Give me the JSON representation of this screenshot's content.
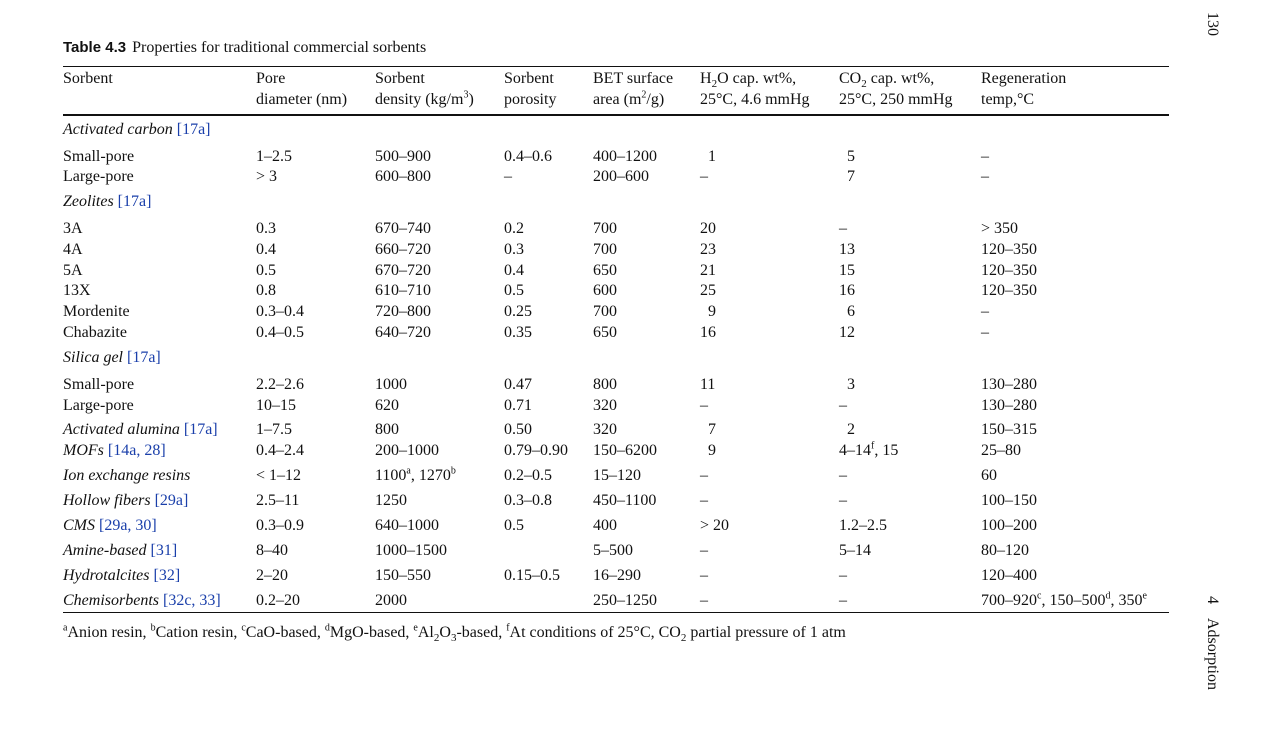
{
  "side": {
    "page_number": "130",
    "chapter_number": "4",
    "chapter_title": "Adsorption"
  },
  "caption": {
    "number": "Table 4.3",
    "title": "Properties for traditional commercial sorbents"
  },
  "headers": {
    "sorbent": "Sorbent",
    "pore_1": "Pore",
    "pore_2": "diameter (nm)",
    "density_1": "Sorbent",
    "density_2a": "density (kg/m",
    "density_sup": "3",
    "density_2b": ")",
    "porosity_1": "Sorbent",
    "porosity_2": "porosity",
    "bet_1": "BET surface",
    "bet_2a": "area (m",
    "bet_sup": "2",
    "bet_2b": "/g)",
    "h2o_1a": "H",
    "h2o_sub": "2",
    "h2o_1b": "O cap. wt%,",
    "h2o_2": "25°C, 4.6 mmHg",
    "co2_1a": "CO",
    "co2_sub": "2",
    "co2_1b": " cap. wt%,",
    "co2_2": "25°C, 250 mmHg",
    "regen_1": "Regeneration",
    "regen_2": "temp,°C"
  },
  "groups": {
    "activated_carbon": {
      "name": "Activated carbon",
      "ref": "[17a]"
    },
    "zeolites": {
      "name": "Zeolites",
      "ref": "[17a]"
    },
    "silica_gel": {
      "name": "Silica gel",
      "ref": "[17a]"
    }
  },
  "rows": {
    "ac_small": {
      "sorbent": "Small-pore",
      "pore": "1–2.5",
      "density": "500–900",
      "porosity": "0.4–0.6",
      "bet": "400–1200",
      "h2o": "1",
      "co2": "5",
      "regen": "–"
    },
    "ac_large": {
      "sorbent": "Large-pore",
      "pore": "> 3",
      "density": "600–800",
      "porosity": "–",
      "bet": "200–600",
      "h2o": "–",
      "co2": "7",
      "regen": "–"
    },
    "z3a": {
      "sorbent": "3A",
      "pore": "0.3",
      "density": "670–740",
      "porosity": "0.2",
      "bet": "700",
      "h2o": "20",
      "co2": "–",
      "regen": "> 350"
    },
    "z4a": {
      "sorbent": "4A",
      "pore": "0.4",
      "density": "660–720",
      "porosity": "0.3",
      "bet": "700",
      "h2o": "23",
      "co2": "13",
      "regen": "120–350"
    },
    "z5a": {
      "sorbent": "5A",
      "pore": "0.5",
      "density": "670–720",
      "porosity": "0.4",
      "bet": "650",
      "h2o": "21",
      "co2": "15",
      "regen": "120–350"
    },
    "z13x": {
      "sorbent": "13X",
      "pore": "0.8",
      "density": "610–710",
      "porosity": "0.5",
      "bet": "600",
      "h2o": "25",
      "co2": "16",
      "regen": "120–350"
    },
    "mordenite": {
      "sorbent": "Mordenite",
      "pore": "0.3–0.4",
      "density": "720–800",
      "porosity": "0.25",
      "bet": "700",
      "h2o": "9",
      "co2": "6",
      "regen": "–"
    },
    "chabazite": {
      "sorbent": "Chabazite",
      "pore": "0.4–0.5",
      "density": "640–720",
      "porosity": "0.35",
      "bet": "650",
      "h2o": "16",
      "co2": "12",
      "regen": "–"
    },
    "sg_small": {
      "sorbent": "Small-pore",
      "pore": "2.2–2.6",
      "density": "1000",
      "porosity": "0.47",
      "bet": "800",
      "h2o": "11",
      "co2": "3",
      "regen": "130–280"
    },
    "sg_large": {
      "sorbent": "Large-pore",
      "pore": "10–15",
      "density": "620",
      "porosity": "0.71",
      "bet": "320",
      "h2o": "–",
      "co2": "–",
      "regen": "130–280"
    },
    "alumina": {
      "sorbent": "Activated alumina",
      "ref": "[17a]",
      "pore": "1–7.5",
      "density": "800",
      "porosity": "0.50",
      "bet": "320",
      "h2o": "7",
      "co2": "2",
      "regen": "150–315"
    },
    "mofs": {
      "sorbent": "MOFs",
      "ref": "[14a, 28]",
      "pore": "0.4–2.4",
      "density": "200–1000",
      "porosity": "0.79–0.90",
      "bet": "150–6200",
      "h2o": "9",
      "co2_a": "4–14",
      "co2_sup": "f",
      "co2_b": ", 15",
      "regen": "25–80"
    },
    "ion": {
      "sorbent": "Ion exchange resins",
      "pore": "< 1–12",
      "density_a": "1100",
      "density_sup1": "a",
      "density_b": ", 1270",
      "density_sup2": "b",
      "porosity": "0.2–0.5",
      "bet": "15–120",
      "h2o": "–",
      "co2": "–",
      "regen": "60"
    },
    "hollow": {
      "sorbent": "Hollow fibers",
      "ref": "[29a]",
      "pore": "2.5–11",
      "density": "1250",
      "porosity": "0.3–0.8",
      "bet": "450–1100",
      "h2o": "–",
      "co2": "–",
      "regen": "100–150"
    },
    "cms": {
      "sorbent": "CMS",
      "ref": "[29a, 30]",
      "pore": "0.3–0.9",
      "density": "640–1000",
      "porosity": "0.5",
      "bet": "400",
      "h2o": "> 20",
      "co2": "1.2–2.5",
      "regen": "100–200"
    },
    "amine": {
      "sorbent": "Amine-based",
      "ref": "[31]",
      "pore": "8–40",
      "density": "1000–1500",
      "bet": "5–500",
      "h2o": "–",
      "co2": "5–14",
      "regen": "80–120"
    },
    "hydro": {
      "sorbent": "Hydrotalcites",
      "ref": "[32]",
      "pore": "2–20",
      "density": "150–550",
      "porosity": "0.15–0.5",
      "bet": "16–290",
      "h2o": "–",
      "co2": "–",
      "regen": "120–400"
    },
    "chemi": {
      "sorbent": "Chemisorbents",
      "ref": "[32c, 33]",
      "pore": "0.2–20",
      "density": "2000",
      "bet": "250–1250",
      "h2o": "–",
      "co2": "–",
      "regen_a": "700–920",
      "regen_sup1": "c",
      "regen_b": ", 150–500",
      "regen_sup2": "d",
      "regen_c": ", 350",
      "regen_sup3": "e"
    }
  },
  "footnote": {
    "a_mark": "a",
    "a_text": "Anion resin, ",
    "b_mark": "b",
    "b_text": "Cation resin, ",
    "c_mark": "c",
    "c_text": "CaO-based, ",
    "d_mark": "d",
    "d_text": "MgO-based, ",
    "e_mark": "e",
    "e_text1": "Al",
    "e_sub1": "2",
    "e_text2": "O",
    "e_sub2": "3",
    "e_text3": "-based, ",
    "f_mark": "f",
    "f_text1": "At conditions of 25°C, CO",
    "f_sub": "2",
    "f_text2": " partial pressure of 1 atm"
  }
}
